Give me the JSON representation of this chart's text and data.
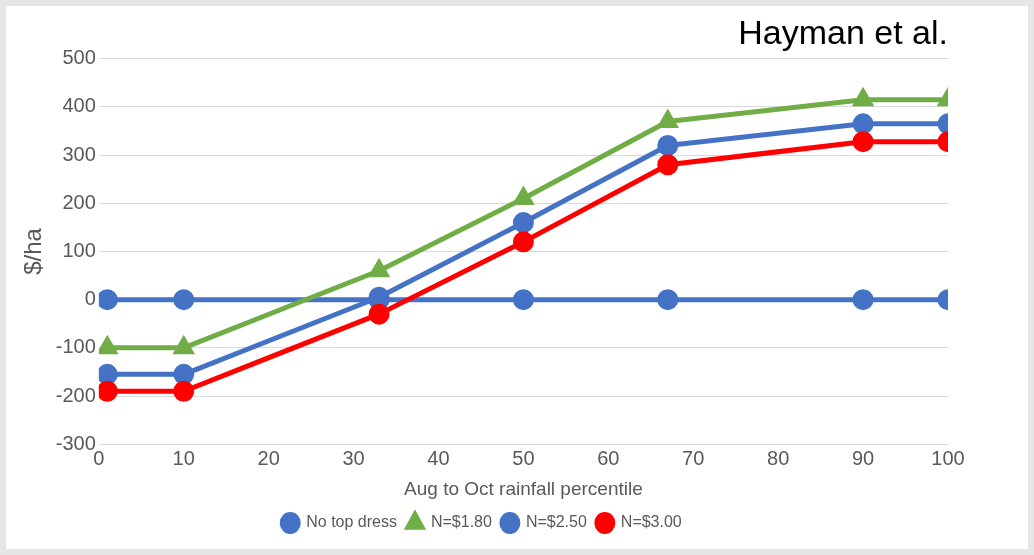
{
  "chart_data": {
    "type": "line",
    "title": "Hayman et al.",
    "xlabel": "Aug to Oct rainfall percentile",
    "ylabel": "$/ha",
    "x": [
      1,
      10,
      33,
      50,
      67,
      90,
      100
    ],
    "xlim": [
      0,
      100
    ],
    "xticks": [
      0,
      10,
      20,
      30,
      40,
      50,
      60,
      70,
      80,
      90,
      100
    ],
    "ylim": [
      -300,
      500
    ],
    "yticks": [
      -300,
      -200,
      -100,
      0,
      100,
      200,
      300,
      400,
      500
    ],
    "grid": "y",
    "legend": "bottom",
    "series": [
      {
        "name": "No top dress",
        "color": "#4472c4",
        "marker": "circle",
        "values": [
          0,
          0,
          0,
          0,
          0,
          0,
          0
        ]
      },
      {
        "name": "N=$1.80",
        "color": "#70ad47",
        "marker": "triangle",
        "values": [
          -100,
          -100,
          60,
          210,
          370,
          415,
          415
        ]
      },
      {
        "name": "N=$2.50",
        "color": "#4472c4",
        "marker": "circle",
        "values": [
          -155,
          -155,
          5,
          160,
          320,
          365,
          365
        ]
      },
      {
        "name": "N=$3.00",
        "color": "#ff0000",
        "marker": "circle",
        "values": [
          -190,
          -190,
          -30,
          120,
          280,
          328,
          328
        ]
      }
    ]
  }
}
